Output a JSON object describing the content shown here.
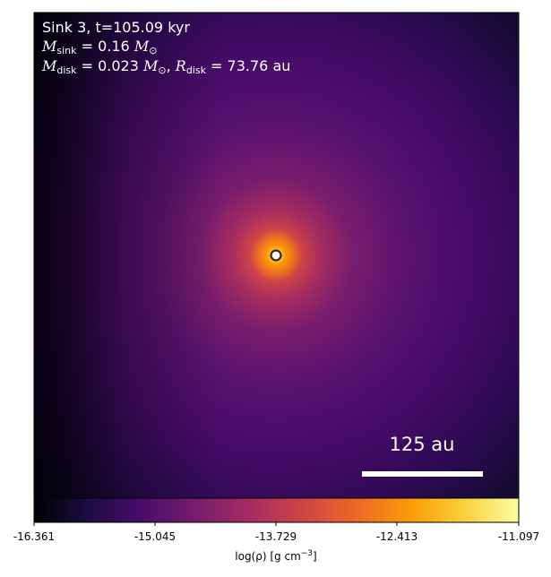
{
  "annotation": {
    "line1": "Sink 3, t=105.09 kyr",
    "msink_symbol": "M",
    "msink_sub": "sink",
    "msink_value": " = 0.16 ",
    "mdisk_symbol": "M",
    "mdisk_sub": "disk",
    "mdisk_value": " = 0.023 ",
    "rdisk_symbol": "R",
    "rdisk_sub": "disk",
    "rdisk_value": " = 73.76 au",
    "solar_symbol": "M",
    "solar_sub": "⊙"
  },
  "scalebar": {
    "label": "125 au"
  },
  "colorbar": {
    "colormap": "inferno",
    "label_prefix": "log(ρ) [g cm",
    "label_exp": "−3",
    "label_suffix": "]",
    "ticks": [
      "-16.361",
      "-15.045",
      "-13.729",
      "-12.413",
      "-11.097"
    ],
    "min": -16.361,
    "max": -11.097,
    "stops": [
      "#000004",
      "#1b0c41",
      "#4a0c6b",
      "#781c6d",
      "#a52c60",
      "#cf4446",
      "#ed6925",
      "#fb9b06",
      "#f7d13d",
      "#fcffa4"
    ]
  },
  "map": {
    "background_color": "#330a5f",
    "sink_marker_color": "#ffffff",
    "sink_marker_edge": "#3a2a10"
  }
}
